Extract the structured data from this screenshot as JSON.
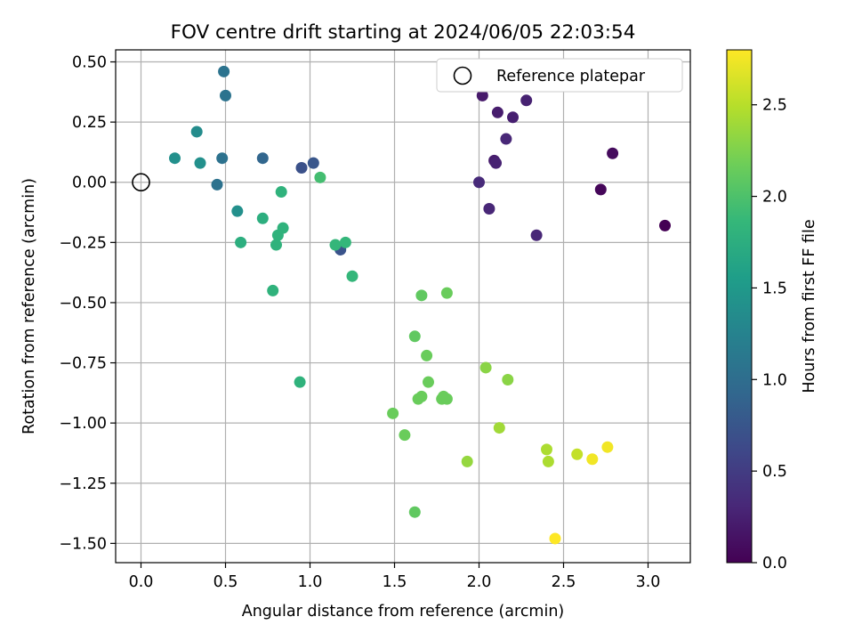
{
  "chart_data": {
    "type": "scatter",
    "title": "FOV centre drift starting at 2024/06/05 22:03:54",
    "xlabel": "Angular distance from reference (arcmin)",
    "ylabel": "Rotation from reference (arcmin)",
    "xlim": [
      -0.15,
      3.25
    ],
    "ylim": [
      -1.58,
      0.55
    ],
    "xticks": [
      0.0,
      0.5,
      1.0,
      1.5,
      2.0,
      2.5,
      3.0
    ],
    "xtick_labels": [
      "0.0",
      "0.5",
      "1.0",
      "1.5",
      "2.0",
      "2.5",
      "3.0"
    ],
    "yticks": [
      0.5,
      0.25,
      0.0,
      -0.25,
      -0.5,
      -0.75,
      -1.0,
      -1.25,
      -1.5
    ],
    "ytick_labels": [
      "0.50",
      "0.25",
      "0.00",
      "−0.25",
      "−0.50",
      "−0.75",
      "−1.00",
      "−1.25",
      "−1.50"
    ],
    "grid": true,
    "legend": {
      "location": "top-right",
      "entries": [
        "Reference platepar"
      ]
    },
    "reference_point": {
      "x": 0.0,
      "y": 0.0,
      "label": "Reference platepar"
    },
    "colorbar": {
      "label": "Hours from first FF file",
      "colormap": "viridis",
      "range": [
        0.0,
        2.8
      ],
      "ticks": [
        0.0,
        0.5,
        1.0,
        1.5,
        2.0,
        2.5
      ],
      "tick_labels": [
        "0.0",
        "0.5",
        "1.0",
        "1.5",
        "2.0",
        "2.5"
      ],
      "stops": [
        "#440154",
        "#482878",
        "#3e4989",
        "#31688e",
        "#26828e",
        "#1f9e89",
        "#35b779",
        "#6ece58",
        "#b5de2b",
        "#fde725"
      ]
    },
    "points": [
      {
        "x": 3.1,
        "y": -0.18,
        "c": 0.0
      },
      {
        "x": 2.72,
        "y": -0.03,
        "c": 0.04
      },
      {
        "x": 2.79,
        "y": 0.12,
        "c": 0.08
      },
      {
        "x": 2.34,
        "y": -0.22,
        "c": 0.3
      },
      {
        "x": 2.06,
        "y": -0.11,
        "c": 0.3
      },
      {
        "x": 2.0,
        "y": 0.0,
        "c": 0.33
      },
      {
        "x": 2.09,
        "y": 0.09,
        "c": 0.22
      },
      {
        "x": 2.1,
        "y": 0.08,
        "c": 0.26
      },
      {
        "x": 2.16,
        "y": 0.18,
        "c": 0.3
      },
      {
        "x": 2.02,
        "y": 0.36,
        "c": 0.2
      },
      {
        "x": 2.11,
        "y": 0.29,
        "c": 0.22
      },
      {
        "x": 2.2,
        "y": 0.27,
        "c": 0.24
      },
      {
        "x": 2.28,
        "y": 0.34,
        "c": 0.26
      },
      {
        "x": 0.95,
        "y": 0.06,
        "c": 0.7
      },
      {
        "x": 1.02,
        "y": 0.08,
        "c": 0.75
      },
      {
        "x": 1.18,
        "y": -0.28,
        "c": 0.72
      },
      {
        "x": 0.45,
        "y": -0.01,
        "c": 1.05
      },
      {
        "x": 0.48,
        "y": 0.1,
        "c": 1.05
      },
      {
        "x": 0.72,
        "y": 0.1,
        "c": 0.92
      },
      {
        "x": 0.49,
        "y": 0.46,
        "c": 1.07
      },
      {
        "x": 0.5,
        "y": 0.36,
        "c": 1.07
      },
      {
        "x": 0.33,
        "y": 0.21,
        "c": 1.35
      },
      {
        "x": 0.2,
        "y": 0.1,
        "c": 1.4
      },
      {
        "x": 0.35,
        "y": 0.08,
        "c": 1.4
      },
      {
        "x": 0.57,
        "y": -0.12,
        "c": 1.4
      },
      {
        "x": 0.59,
        "y": -0.25,
        "c": 1.75
      },
      {
        "x": 0.72,
        "y": -0.15,
        "c": 1.75
      },
      {
        "x": 0.83,
        "y": -0.04,
        "c": 1.8
      },
      {
        "x": 0.84,
        "y": -0.19,
        "c": 1.8
      },
      {
        "x": 0.81,
        "y": -0.22,
        "c": 1.8
      },
      {
        "x": 0.8,
        "y": -0.26,
        "c": 1.8
      },
      {
        "x": 0.78,
        "y": -0.45,
        "c": 1.8
      },
      {
        "x": 0.94,
        "y": -0.83,
        "c": 1.8
      },
      {
        "x": 1.06,
        "y": 0.02,
        "c": 1.95
      },
      {
        "x": 1.15,
        "y": -0.26,
        "c": 1.85
      },
      {
        "x": 1.21,
        "y": -0.25,
        "c": 1.85
      },
      {
        "x": 1.25,
        "y": -0.39,
        "c": 1.85
      },
      {
        "x": 1.66,
        "y": -0.47,
        "c": 2.1
      },
      {
        "x": 1.81,
        "y": -0.46,
        "c": 2.15
      },
      {
        "x": 1.62,
        "y": -0.64,
        "c": 2.1
      },
      {
        "x": 1.69,
        "y": -0.72,
        "c": 2.15
      },
      {
        "x": 1.7,
        "y": -0.83,
        "c": 2.15
      },
      {
        "x": 1.64,
        "y": -0.9,
        "c": 2.15
      },
      {
        "x": 1.66,
        "y": -0.89,
        "c": 2.15
      },
      {
        "x": 1.78,
        "y": -0.9,
        "c": 2.15
      },
      {
        "x": 1.79,
        "y": -0.89,
        "c": 2.15
      },
      {
        "x": 1.81,
        "y": -0.9,
        "c": 2.15
      },
      {
        "x": 1.49,
        "y": -0.96,
        "c": 2.15
      },
      {
        "x": 1.56,
        "y": -1.05,
        "c": 2.15
      },
      {
        "x": 1.62,
        "y": -1.37,
        "c": 2.1
      },
      {
        "x": 2.04,
        "y": -0.77,
        "c": 2.3
      },
      {
        "x": 2.17,
        "y": -0.82,
        "c": 2.3
      },
      {
        "x": 1.93,
        "y": -1.16,
        "c": 2.35
      },
      {
        "x": 2.12,
        "y": -1.02,
        "c": 2.4
      },
      {
        "x": 2.4,
        "y": -1.11,
        "c": 2.45
      },
      {
        "x": 2.41,
        "y": -1.16,
        "c": 2.45
      },
      {
        "x": 2.58,
        "y": -1.13,
        "c": 2.55
      },
      {
        "x": 2.67,
        "y": -1.15,
        "c": 2.75
      },
      {
        "x": 2.76,
        "y": -1.1,
        "c": 2.75
      },
      {
        "x": 2.45,
        "y": -1.48,
        "c": 2.8
      }
    ]
  }
}
